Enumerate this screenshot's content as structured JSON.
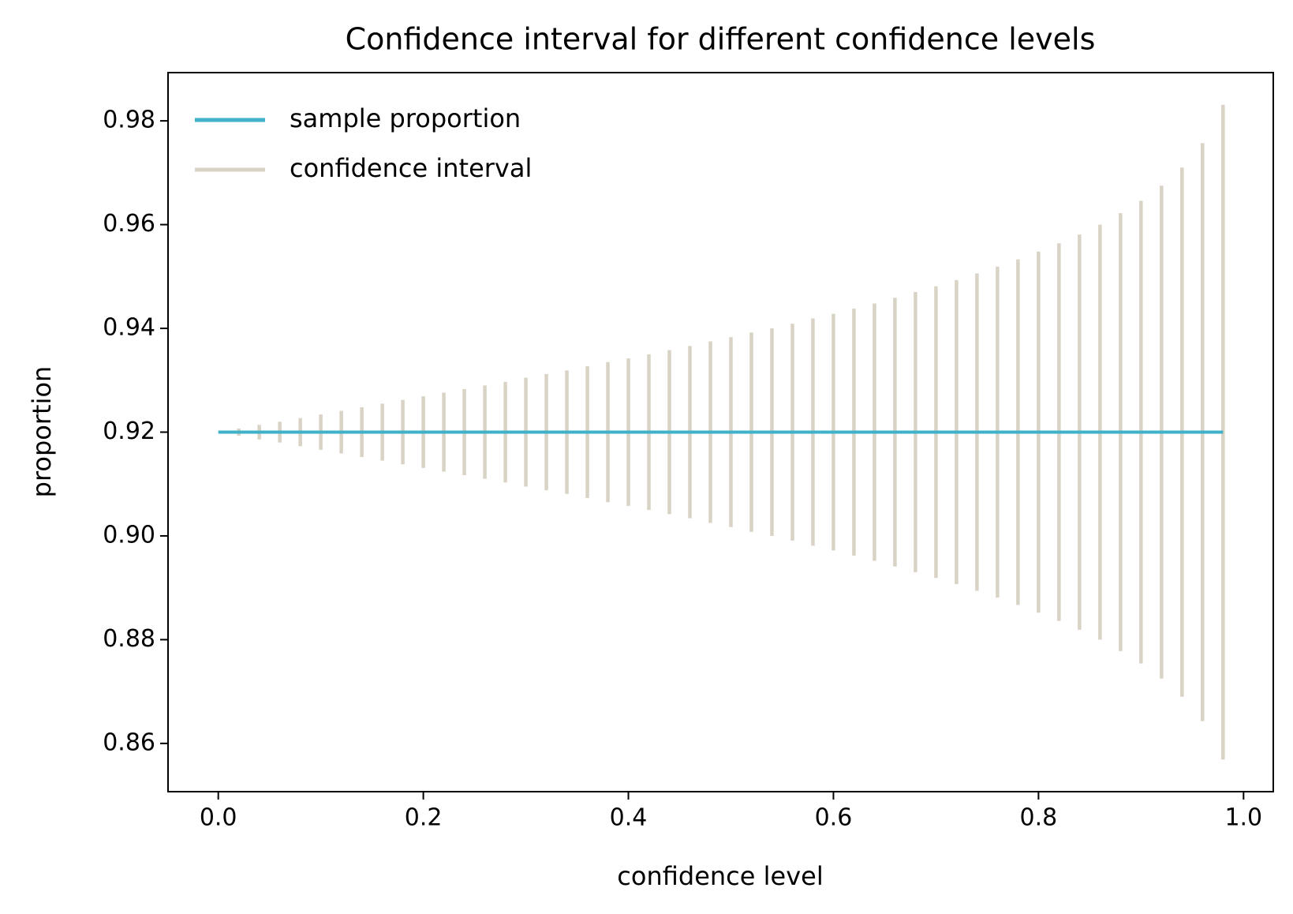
{
  "chart_data": {
    "type": "interval",
    "title": "Confidence interval for different confidence levels",
    "x_label": "confidence level",
    "y_label": "proportion",
    "x": [
      0,
      0.02,
      0.04,
      0.06,
      0.08,
      0.1,
      0.12,
      0.14,
      0.16,
      0.18,
      0.2,
      0.22,
      0.24,
      0.26,
      0.28,
      0.3,
      0.32,
      0.34,
      0.36,
      0.38,
      0.4,
      0.42,
      0.44,
      0.46,
      0.48,
      0.5,
      0.52,
      0.54,
      0.56,
      0.58,
      0.6,
      0.62,
      0.64,
      0.66,
      0.68,
      0.7,
      0.72,
      0.74,
      0.76,
      0.78,
      0.8,
      0.82,
      0.84,
      0.86,
      0.88,
      0.9,
      0.92,
      0.94,
      0.96,
      0.98
    ],
    "series": [
      {
        "name": "sample proportion",
        "color": "#3fb1c9",
        "values": [
          0.92,
          0.92,
          0.92,
          0.92,
          0.92,
          0.92,
          0.92,
          0.92,
          0.92,
          0.92,
          0.92,
          0.92,
          0.92,
          0.92,
          0.92,
          0.92,
          0.92,
          0.92,
          0.92,
          0.92,
          0.92,
          0.92,
          0.92,
          0.92,
          0.92,
          0.92,
          0.92,
          0.92,
          0.92,
          0.92,
          0.92,
          0.92,
          0.92,
          0.92,
          0.92,
          0.92,
          0.92,
          0.92,
          0.92,
          0.92,
          0.92,
          0.92,
          0.92,
          0.92,
          0.92,
          0.92,
          0.92,
          0.92,
          0.92,
          0.92
        ]
      },
      {
        "name": "confidence interval",
        "color": "#d9d3c5",
        "lower": [
          0.92,
          0.9193,
          0.9186,
          0.918,
          0.9173,
          0.9166,
          0.9159,
          0.9152,
          0.9145,
          0.9138,
          0.9131,
          0.9124,
          0.9117,
          0.911,
          0.9103,
          0.9095,
          0.9088,
          0.9081,
          0.9073,
          0.9065,
          0.9058,
          0.905,
          0.9042,
          0.9034,
          0.9025,
          0.9017,
          0.9008,
          0.9,
          0.8991,
          0.8981,
          0.8972,
          0.8962,
          0.8952,
          0.8941,
          0.893,
          0.8919,
          0.8907,
          0.8894,
          0.8881,
          0.8867,
          0.8852,
          0.8836,
          0.8819,
          0.88,
          0.8778,
          0.8754,
          0.8725,
          0.869,
          0.8643,
          0.8569
        ],
        "upper": [
          0.92,
          0.9207,
          0.9214,
          0.922,
          0.9227,
          0.9234,
          0.9241,
          0.9248,
          0.9255,
          0.9262,
          0.9269,
          0.9276,
          0.9283,
          0.929,
          0.9297,
          0.9305,
          0.9312,
          0.9319,
          0.9327,
          0.9335,
          0.9342,
          0.935,
          0.9358,
          0.9366,
          0.9375,
          0.9383,
          0.9392,
          0.94,
          0.9409,
          0.9419,
          0.9428,
          0.9438,
          0.9448,
          0.9459,
          0.947,
          0.9481,
          0.9493,
          0.9506,
          0.9519,
          0.9533,
          0.9548,
          0.9564,
          0.9581,
          0.96,
          0.9622,
          0.9646,
          0.9675,
          0.971,
          0.9757,
          0.9831
        ]
      }
    ],
    "xlim": [
      -0.049,
      1.029
    ],
    "ylim": [
      0.8507,
      0.9893
    ],
    "xticks": [
      {
        "value": 0,
        "label": "0.0"
      },
      {
        "value": 0.2,
        "label": "0.2"
      },
      {
        "value": 0.4,
        "label": "0.4"
      },
      {
        "value": 0.6,
        "label": "0.6"
      },
      {
        "value": 0.8,
        "label": "0.8"
      },
      {
        "value": 1,
        "label": "1.0"
      }
    ],
    "yticks": [
      0.86,
      0.88,
      {
        "value": 0.9,
        "label": "0.90"
      },
      0.92,
      0.94,
      0.96,
      0.98
    ],
    "grid": false,
    "legend": "upper left"
  }
}
